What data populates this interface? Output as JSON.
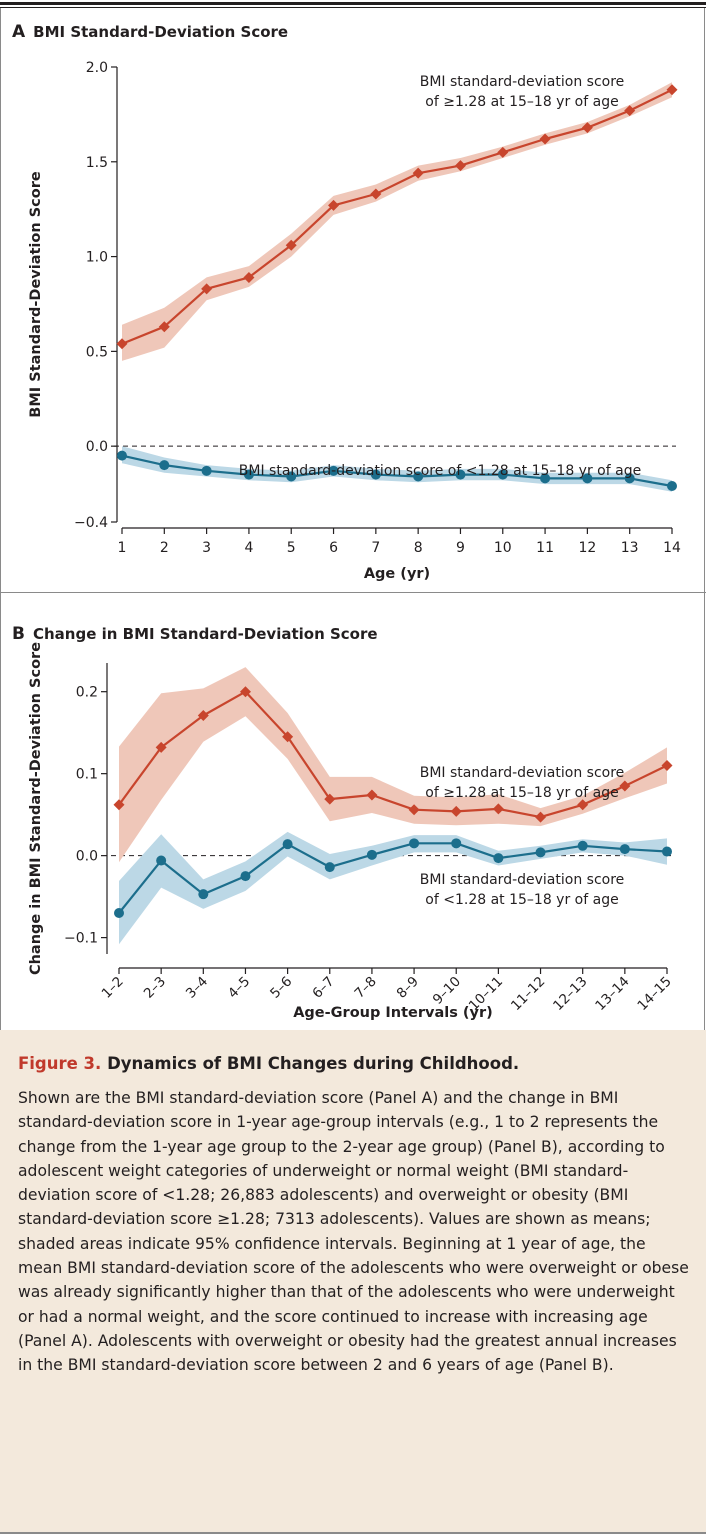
{
  "panel_a": {
    "letter": "A",
    "title": "BMI Standard-Deviation Score"
  },
  "panel_b": {
    "letter": "B",
    "title": "Change in BMI Standard-Deviation Score"
  },
  "caption": {
    "figure_label": "Figure 3.",
    "title": "Dynamics of BMI Changes during Childhood.",
    "body": "Shown are the BMI standard-deviation score (Panel A) and the change in BMI standard-deviation score in 1-year age-group intervals (e.g., 1 to 2 represents the change from the 1-year age group to the 2-year age group) (Panel B), according to adolescent weight categories of underweight or normal weight (BMI standard-deviation score of <1.28; 26,883 adolescents) and overweight or obesity (BMI standard-deviation score ≥1.28; 7313 adolescents). Values are shown as means; shaded areas indicate 95% confidence intervals. Beginning at 1 year of age, the mean BMI standard-deviation score of the adolescents who were overweight or obese was already significantly higher than that of the adolescents who were underweight or had a normal weight, and the score continued to increase with increasing age (Panel A). Adolescents with overweight or obesity had the greatest annual increases in the BMI standard-deviation score between 2 and 6 years of age (Panel B)."
  },
  "colors": {
    "overweight_line": "#c8452d",
    "overweight_band": "#efc7b9",
    "normal_line": "#1c6e8c",
    "normal_band": "#bcd8e6",
    "caption_bg": "#f3e9dc",
    "figure_label": "#c0392b"
  },
  "chart_data": [
    {
      "type": "line",
      "title": "BMI Standard-Deviation Score",
      "xlabel": "Age (yr)",
      "ylabel": "BMI Standard-Deviation Score",
      "x": [
        1,
        2,
        3,
        4,
        5,
        6,
        7,
        8,
        9,
        10,
        11,
        12,
        13,
        14
      ],
      "x_tick_labels": [
        "1",
        "2",
        "3",
        "4",
        "5",
        "6",
        "7",
        "8",
        "9",
        "10",
        "11",
        "12",
        "13",
        "14"
      ],
      "ylim": [
        -0.4,
        2.0
      ],
      "y_ticks": [
        -0.4,
        0.0,
        0.5,
        1.0,
        1.5,
        2.0
      ],
      "y_tick_labels": [
        "−0.4",
        "0.0",
        "0.5",
        "1.0",
        "1.5",
        "2.0"
      ],
      "reference_line": 0.0,
      "grid": false,
      "series": [
        {
          "name": "BMI standard-deviation score of ≥1.28 at 15–18 yr of age",
          "label_lines": [
            "BMI standard-deviation score",
            "of ≥1.28 at 15–18 yr of age"
          ],
          "marker": "diamond",
          "values": [
            0.54,
            0.63,
            0.83,
            0.89,
            1.06,
            1.27,
            1.33,
            1.44,
            1.48,
            1.55,
            1.62,
            1.68,
            1.77,
            1.88
          ],
          "lower": [
            0.45,
            0.52,
            0.77,
            0.84,
            1.0,
            1.22,
            1.29,
            1.4,
            1.45,
            1.52,
            1.59,
            1.65,
            1.74,
            1.84
          ],
          "upper": [
            0.64,
            0.73,
            0.89,
            0.95,
            1.12,
            1.32,
            1.38,
            1.48,
            1.52,
            1.58,
            1.65,
            1.71,
            1.8,
            1.92
          ]
        },
        {
          "name": "BMI standard-deviation score of <1.28 at 15–18 yr of age",
          "label_lines": [
            "BMI standard-deviation score of <1.28 at 15–18 yr of age"
          ],
          "marker": "circle",
          "values": [
            -0.05,
            -0.1,
            -0.13,
            -0.15,
            -0.16,
            -0.13,
            -0.15,
            -0.16,
            -0.15,
            -0.15,
            -0.17,
            -0.17,
            -0.17,
            -0.21
          ],
          "lower": [
            -0.09,
            -0.14,
            -0.16,
            -0.18,
            -0.19,
            -0.16,
            -0.18,
            -0.19,
            -0.18,
            -0.18,
            -0.2,
            -0.2,
            -0.2,
            -0.24
          ],
          "upper": [
            0.0,
            -0.06,
            -0.1,
            -0.12,
            -0.13,
            -0.1,
            -0.12,
            -0.13,
            -0.12,
            -0.12,
            -0.14,
            -0.14,
            -0.14,
            -0.18
          ]
        }
      ]
    },
    {
      "type": "line",
      "title": "Change in BMI Standard-Deviation Score",
      "xlabel": "Age-Group Intervals (yr)",
      "ylabel": "Change in BMI Standard-Deviation Score",
      "categories": [
        "1–2",
        "2–3",
        "3–4",
        "4–5",
        "5–6",
        "6–7",
        "7–8",
        "8–9",
        "9–10",
        "10–11",
        "11–12",
        "12–13",
        "13–14",
        "14–15"
      ],
      "ylim": [
        -0.12,
        0.235
      ],
      "y_ticks": [
        -0.1,
        0.0,
        0.1,
        0.2
      ],
      "y_tick_labels": [
        "−0.1",
        "0.0",
        "0.1",
        "0.2"
      ],
      "reference_line": 0.0,
      "grid": false,
      "series": [
        {
          "name": "BMI standard-deviation score of ≥1.28 at 15–18 yr of age",
          "label_lines": [
            "BMI standard-deviation score",
            "of ≥1.28 at 15–18 yr of age"
          ],
          "marker": "diamond",
          "values": [
            0.062,
            0.132,
            0.171,
            0.2,
            0.145,
            0.069,
            0.074,
            0.056,
            0.054,
            0.057,
            0.047,
            0.062,
            0.085,
            0.11
          ],
          "lower": [
            -0.008,
            0.068,
            0.139,
            0.17,
            0.118,
            0.042,
            0.052,
            0.039,
            0.037,
            0.039,
            0.036,
            0.051,
            0.07,
            0.088
          ],
          "upper": [
            0.133,
            0.198,
            0.204,
            0.23,
            0.174,
            0.096,
            0.096,
            0.073,
            0.071,
            0.075,
            0.058,
            0.073,
            0.101,
            0.132
          ]
        },
        {
          "name": "BMI standard-deviation score of <1.28 at 15–18 yr of age",
          "label_lines": [
            "BMI standard-deviation score",
            "of <1.28 at 15–18 yr of age"
          ],
          "marker": "circle",
          "values": [
            -0.07,
            -0.006,
            -0.047,
            -0.025,
            0.014,
            -0.014,
            0.001,
            0.015,
            0.015,
            -0.003,
            0.004,
            0.012,
            0.008,
            0.005
          ],
          "lower": [
            -0.108,
            -0.039,
            -0.065,
            -0.043,
            -0.001,
            -0.029,
            -0.012,
            0.004,
            0.004,
            -0.012,
            -0.004,
            0.004,
            0.0,
            -0.011
          ],
          "upper": [
            -0.031,
            0.026,
            -0.029,
            -0.007,
            0.029,
            0.002,
            0.012,
            0.025,
            0.025,
            0.006,
            0.012,
            0.02,
            0.016,
            0.021
          ]
        }
      ]
    }
  ]
}
